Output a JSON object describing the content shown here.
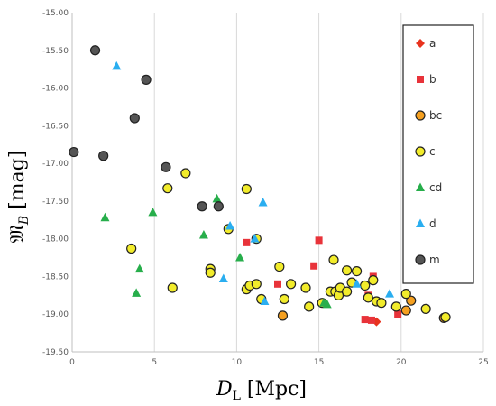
{
  "chart_data": {
    "type": "scatter",
    "xlabel": "D_L [Mpc]",
    "ylabel": "𝔐_B [mag]",
    "xlim": [
      0,
      25
    ],
    "ylim": [
      -19.5,
      -15.0
    ],
    "y_inverted": true,
    "x_ticks": [
      "0",
      "5",
      "10",
      "15",
      "20",
      "25"
    ],
    "y_ticks": [
      "-15.00",
      "-15.50",
      "-16.00",
      "-16.50",
      "-17.00",
      "-17.50",
      "-18.00",
      "-18.50",
      "-19.00",
      "-19.50"
    ],
    "grid": "vertical",
    "legend_position": "right",
    "series": [
      {
        "name": "a",
        "marker": "diamond",
        "color": "#e8331e",
        "points": [
          [
            18.5,
            -19.1
          ]
        ]
      },
      {
        "name": "b",
        "marker": "square",
        "color": "#e8333a",
        "points": [
          [
            15.0,
            -18.02
          ],
          [
            10.6,
            -18.05
          ],
          [
            14.7,
            -18.36
          ],
          [
            18.3,
            -18.5
          ],
          [
            12.5,
            -18.6
          ],
          [
            18.0,
            -18.75
          ],
          [
            19.8,
            -19.0
          ],
          [
            17.8,
            -19.07
          ],
          [
            18.2,
            -19.08
          ]
        ]
      },
      {
        "name": "bc",
        "marker": "circle",
        "color": "#f5a020",
        "points": [
          [
            12.8,
            -19.02
          ],
          [
            20.3,
            -18.95
          ],
          [
            20.6,
            -18.82
          ],
          [
            22.6,
            -19.05
          ]
        ]
      },
      {
        "name": "c",
        "marker": "circle",
        "color": "#f2ec2b",
        "points": [
          [
            5.8,
            -17.33
          ],
          [
            6.9,
            -17.13
          ],
          [
            10.6,
            -17.34
          ],
          [
            3.6,
            -18.13
          ],
          [
            9.5,
            -17.87
          ],
          [
            11.2,
            -18.0
          ],
          [
            8.4,
            -18.4
          ],
          [
            8.4,
            -18.45
          ],
          [
            6.1,
            -18.65
          ],
          [
            12.6,
            -18.37
          ],
          [
            10.6,
            -18.67
          ],
          [
            10.8,
            -18.62
          ],
          [
            11.2,
            -18.6
          ],
          [
            11.5,
            -18.8
          ],
          [
            12.9,
            -18.8
          ],
          [
            13.3,
            -18.6
          ],
          [
            14.2,
            -18.65
          ],
          [
            14.4,
            -18.9
          ],
          [
            15.2,
            -18.85
          ],
          [
            15.7,
            -18.7
          ],
          [
            15.9,
            -18.28
          ],
          [
            16.0,
            -18.7
          ],
          [
            16.2,
            -18.75
          ],
          [
            16.3,
            -18.65
          ],
          [
            16.7,
            -18.42
          ],
          [
            16.7,
            -18.7
          ],
          [
            17.0,
            -18.58
          ],
          [
            17.3,
            -18.43
          ],
          [
            17.8,
            -18.62
          ],
          [
            18.0,
            -18.78
          ],
          [
            18.3,
            -18.55
          ],
          [
            18.5,
            -18.83
          ],
          [
            18.8,
            -18.85
          ],
          [
            19.7,
            -18.9
          ],
          [
            20.3,
            -18.73
          ],
          [
            21.5,
            -18.93
          ],
          [
            22.7,
            -19.04
          ]
        ]
      },
      {
        "name": "cd",
        "marker": "triangle",
        "color": "#27ae4b",
        "points": [
          [
            2.0,
            -17.72
          ],
          [
            3.9,
            -18.72
          ],
          [
            4.1,
            -18.4
          ],
          [
            4.9,
            -17.65
          ],
          [
            8.0,
            -17.95
          ],
          [
            8.8,
            -17.47
          ],
          [
            10.2,
            -18.25
          ],
          [
            15.3,
            -18.85
          ],
          [
            15.5,
            -18.87
          ]
        ]
      },
      {
        "name": "d",
        "marker": "triangle",
        "color": "#2aaef0",
        "points": [
          [
            2.7,
            -15.71
          ],
          [
            9.2,
            -18.53
          ],
          [
            9.6,
            -17.83
          ],
          [
            11.1,
            -18.0
          ],
          [
            11.6,
            -17.52
          ],
          [
            11.7,
            -18.83
          ],
          [
            17.3,
            -18.6
          ],
          [
            19.3,
            -18.73
          ]
        ]
      },
      {
        "name": "m",
        "marker": "circle",
        "color": "#555555",
        "points": [
          [
            1.4,
            -15.5
          ],
          [
            0.1,
            -16.85
          ],
          [
            1.9,
            -16.9
          ],
          [
            3.8,
            -16.4
          ],
          [
            4.5,
            -15.89
          ],
          [
            5.7,
            -17.05
          ],
          [
            7.9,
            -17.57
          ],
          [
            8.9,
            -17.57
          ]
        ]
      }
    ]
  }
}
